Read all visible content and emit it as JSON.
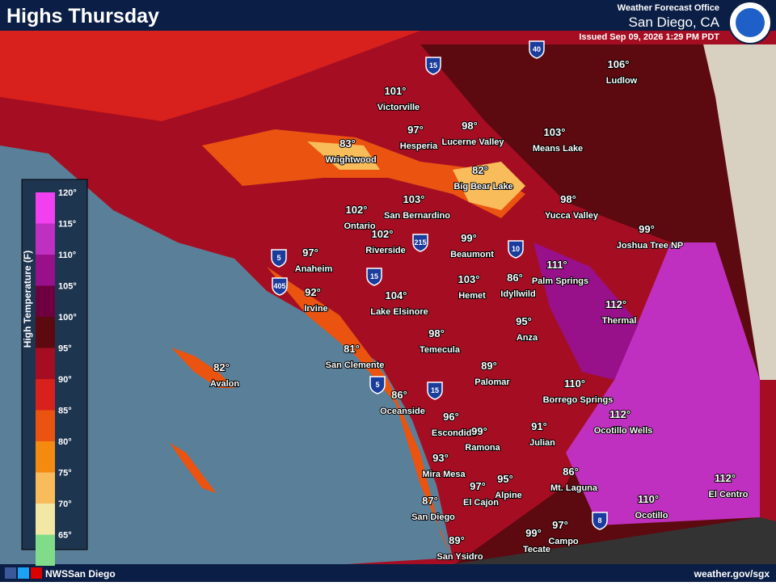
{
  "header": {
    "title": "Highs Thursday",
    "office": "Weather Forecast Office",
    "location": "San Diego, CA",
    "issued": "Issued Sep 09, 2026 1:29 PM PDT"
  },
  "legend": {
    "title": "High Temperature (F)",
    "labels": [
      "120°",
      "115°",
      "110°",
      "105°",
      "100°",
      "95°",
      "90°",
      "85°",
      "80°",
      "75°",
      "70°",
      "65°"
    ],
    "colors": [
      "#f040f0",
      "#c030c0",
      "#98108a",
      "#6e0040",
      "#5c0a10",
      "#a50e22",
      "#d8201c",
      "#ea5410",
      "#f58a10",
      "#f8bc5a",
      "#f2e8a4",
      "#80dc88"
    ]
  },
  "cities": [
    {
      "temp": "101°",
      "name": "Victorville"
    },
    {
      "temp": "97°",
      "name": "Hesperia"
    },
    {
      "temp": "98°",
      "name": "Lucerne Valley"
    },
    {
      "temp": "103°",
      "name": "Means Lake"
    },
    {
      "temp": "106°",
      "name": "Ludlow"
    },
    {
      "temp": "83°",
      "name": "Wrightwood"
    },
    {
      "temp": "82°",
      "name": "Big Bear Lake"
    },
    {
      "temp": "102°",
      "name": "Ontario"
    },
    {
      "temp": "103°",
      "name": "San Bernardino"
    },
    {
      "temp": "98°",
      "name": "Yucca Valley"
    },
    {
      "temp": "99°",
      "name": "Joshua Tree NP"
    },
    {
      "temp": "102°",
      "name": "Riverside"
    },
    {
      "temp": "99°",
      "name": "Beaumont"
    },
    {
      "temp": "97°",
      "name": "Anaheim"
    },
    {
      "temp": "111°",
      "name": "Palm Springs"
    },
    {
      "temp": "92°",
      "name": "Irvine"
    },
    {
      "temp": "103°",
      "name": "Hemet"
    },
    {
      "temp": "86°",
      "name": "Idyllwild"
    },
    {
      "temp": "104°",
      "name": "Lake Elsinore"
    },
    {
      "temp": "112°",
      "name": "Thermal"
    },
    {
      "temp": "95°",
      "name": "Anza"
    },
    {
      "temp": "98°",
      "name": "Temecula"
    },
    {
      "temp": "81°",
      "name": "San Clemente"
    },
    {
      "temp": "89°",
      "name": "Palomar"
    },
    {
      "temp": "82°",
      "name": "Avalon"
    },
    {
      "temp": "110°",
      "name": "Borrego Springs"
    },
    {
      "temp": "86°",
      "name": "Oceanside"
    },
    {
      "temp": "112°",
      "name": "Ocotillo Wells"
    },
    {
      "temp": "96°",
      "name": "Escondido"
    },
    {
      "temp": "99°",
      "name": "Ramona"
    },
    {
      "temp": "91°",
      "name": "Julian"
    },
    {
      "temp": "93°",
      "name": "Mira Mesa"
    },
    {
      "temp": "86°",
      "name": "Mt. Laguna"
    },
    {
      "temp": "95°",
      "name": "Alpine"
    },
    {
      "temp": "97°",
      "name": "El Cajon"
    },
    {
      "temp": "112°",
      "name": "El Centro"
    },
    {
      "temp": "87°",
      "name": "San Diego"
    },
    {
      "temp": "110°",
      "name": "Ocotillo"
    },
    {
      "temp": "97°",
      "name": "Campo"
    },
    {
      "temp": "99°",
      "name": "Tecate"
    },
    {
      "temp": "89°",
      "name": "San Ysidro"
    }
  ],
  "interstates": [
    "15",
    "40",
    "5",
    "405",
    "15",
    "215",
    "10",
    "5",
    "15",
    "8"
  ],
  "footer": {
    "handle": "NWSSan Diego",
    "url": "weather.gov/sgx"
  }
}
